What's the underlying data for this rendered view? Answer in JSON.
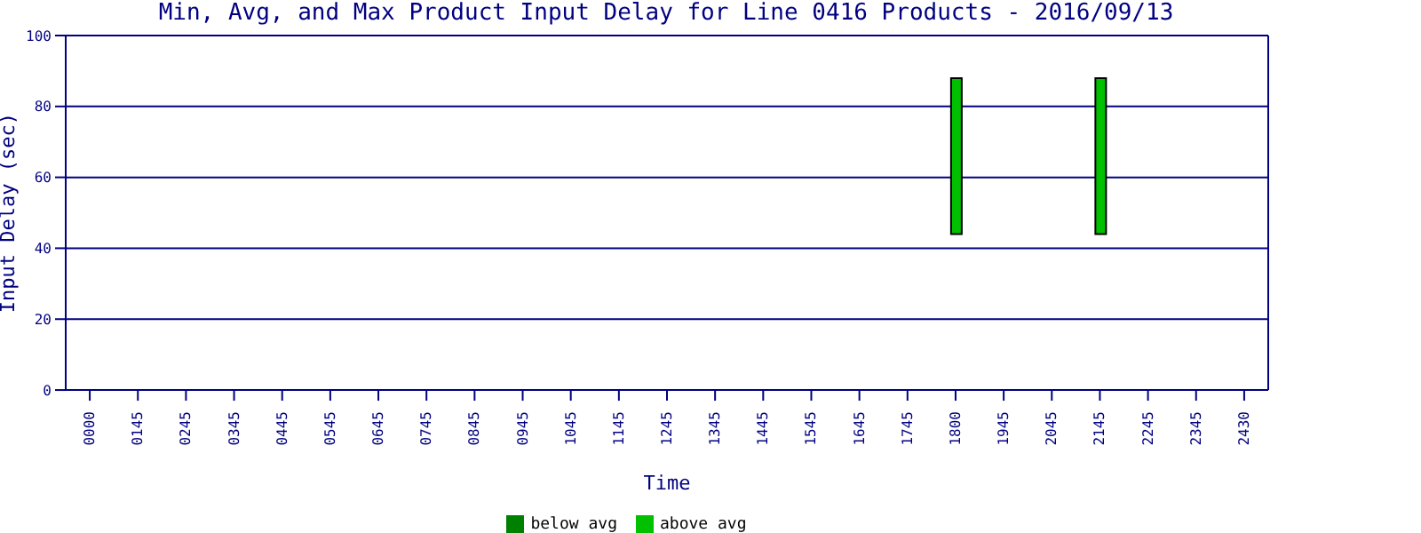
{
  "chart_data": {
    "type": "bar",
    "title": "Min, Avg, and Max Product Input Delay for Line 0416 Products - 2016/09/13",
    "xlabel": "Time",
    "ylabel": "Input Delay (sec)",
    "categories": [
      "0000",
      "0145",
      "0245",
      "0345",
      "0445",
      "0545",
      "0645",
      "0745",
      "0845",
      "0945",
      "1045",
      "1145",
      "1245",
      "1345",
      "1445",
      "1545",
      "1645",
      "1745",
      "1800",
      "1945",
      "2045",
      "2145",
      "2245",
      "2345",
      "2430"
    ],
    "series": [
      {
        "name": "below avg",
        "color": "#008000",
        "values": [
          null,
          null,
          null,
          null,
          null,
          null,
          null,
          null,
          null,
          null,
          null,
          null,
          null,
          null,
          null,
          null,
          null,
          null,
          null,
          null,
          null,
          null,
          null,
          null,
          null
        ]
      },
      {
        "name": "above avg",
        "color": "#00c000",
        "values": [
          null,
          null,
          null,
          null,
          null,
          null,
          null,
          null,
          null,
          null,
          null,
          null,
          null,
          null,
          null,
          null,
          null,
          null,
          44,
          null,
          null,
          44,
          null,
          null,
          null
        ],
        "base": [
          null,
          null,
          null,
          null,
          null,
          null,
          null,
          null,
          null,
          null,
          null,
          null,
          null,
          null,
          null,
          null,
          null,
          null,
          44,
          null,
          null,
          44,
          null,
          null,
          null
        ]
      }
    ],
    "ylim": [
      0,
      100
    ],
    "yticks": [
      0,
      20,
      40,
      60,
      80,
      100
    ],
    "grid": "y",
    "legend": "bottom"
  }
}
